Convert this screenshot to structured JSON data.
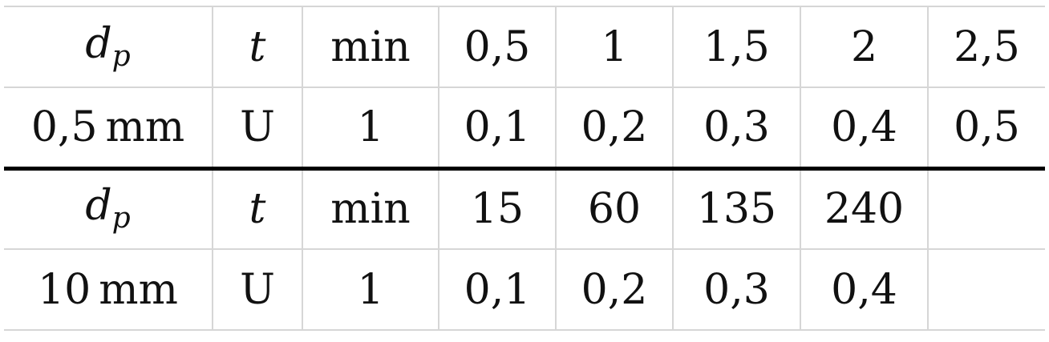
{
  "table": {
    "block1": {
      "header": {
        "d": "d",
        "d_sub": "p",
        "t": "t",
        "unit": "min",
        "values": [
          "0,5",
          "1",
          "1,5",
          "2",
          "2,5"
        ]
      },
      "data": {
        "diameter_value": "0,5",
        "diameter_unit": "mm",
        "symbol": "U",
        "unit": "1",
        "values": [
          "0,1",
          "0,2",
          "0,3",
          "0,4",
          "0,5"
        ]
      }
    },
    "block2": {
      "header": {
        "d": "d",
        "d_sub": "p",
        "t": "t",
        "unit": "min",
        "values": [
          "15",
          "60",
          "135",
          "240",
          ""
        ]
      },
      "data": {
        "diameter_value": "10",
        "diameter_unit": "mm",
        "symbol": "U",
        "unit": "1",
        "values": [
          "0,1",
          "0,2",
          "0,3",
          "0,4",
          ""
        ]
      }
    }
  }
}
